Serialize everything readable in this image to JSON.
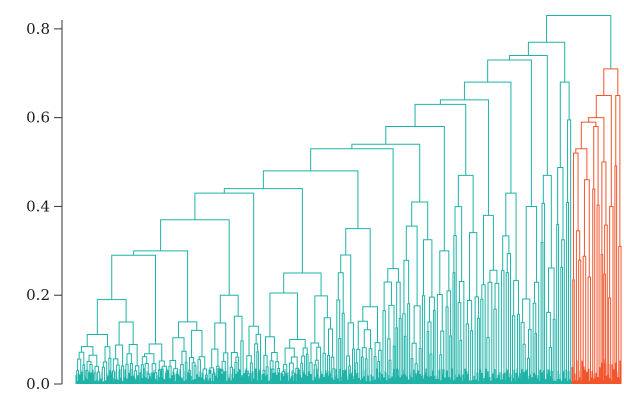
{
  "chart_data": {
    "type": "dendrogram",
    "title": "",
    "xlabel": "",
    "ylabel": "",
    "ylim": [
      0,
      0.82
    ],
    "yticks": [
      {
        "value": 0.0,
        "label": "0.0"
      },
      {
        "value": 0.2,
        "label": "0.2"
      },
      {
        "value": 0.4,
        "label": "0.4"
      },
      {
        "value": 0.6,
        "label": "0.6"
      },
      {
        "value": 0.8,
        "label": "0.8"
      }
    ],
    "grid": false,
    "legend": "none",
    "colors": {
      "cluster_1": "#1fb3a8",
      "cluster_2": "#f2552c",
      "axis": "#333333",
      "text": "#1a1a1a"
    },
    "root": {
      "height": 0.83,
      "left_height": 0.77,
      "right_height": 0.76
    },
    "spine_merges_cluster_1": [
      0.77,
      0.73,
      0.68,
      0.63,
      0.58,
      0.53,
      0.48,
      0.43,
      0.37,
      0.29
    ],
    "spine_merges_cluster_2": [
      0.76,
      0.71,
      0.65,
      0.58,
      0.52,
      0.46,
      0.4
    ],
    "sub_merges_cluster_1": [
      {
        "height": 0.19,
        "left": 0.12,
        "right": 0.09
      },
      {
        "height": 0.2,
        "left": 0.14,
        "right": 0.12
      },
      {
        "height": 0.21,
        "left": 0.16,
        "right": 0.13
      },
      {
        "height": 0.25,
        "left": 0.2,
        "right": 0.14
      },
      {
        "height": 0.35,
        "left": 0.24,
        "right": 0.18
      },
      {
        "height": 0.41,
        "left": 0.32,
        "right": 0.26
      },
      {
        "height": 0.47,
        "left": 0.38,
        "right": 0.3
      }
    ]
  }
}
